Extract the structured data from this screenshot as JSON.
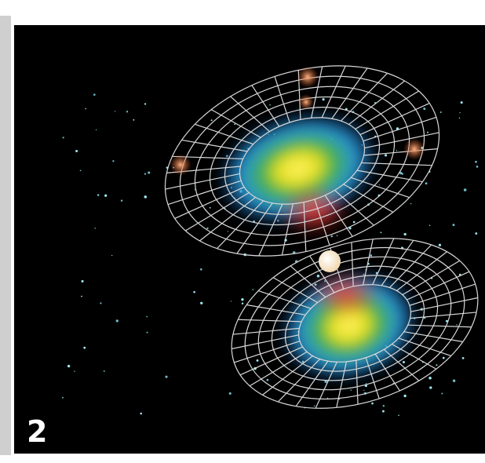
{
  "label": "2"
}
